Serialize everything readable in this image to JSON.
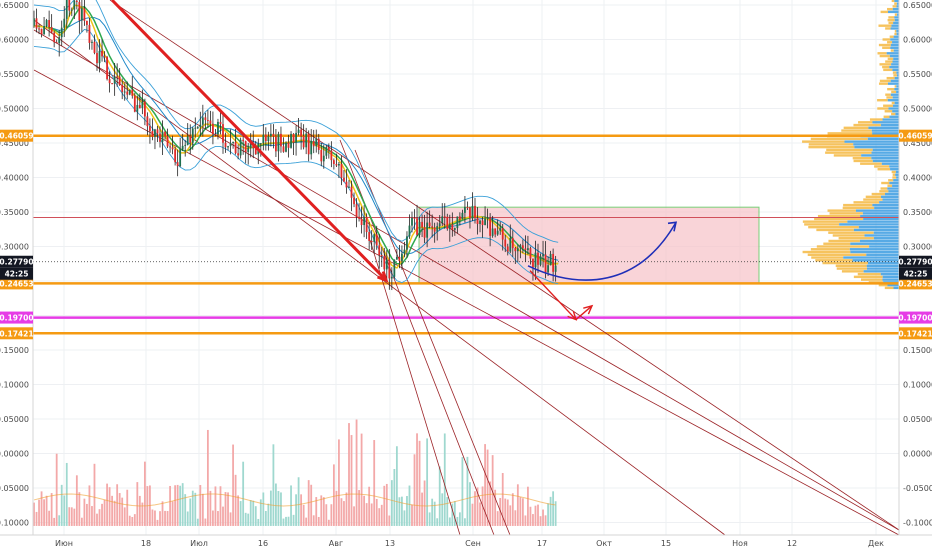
{
  "chart_data": {
    "type": "candlestick",
    "y_ticks": [
      0.65,
      0.6,
      0.55,
      0.5,
      0.45,
      0.4,
      0.35,
      0.3,
      0.25,
      0.2,
      0.15,
      0.1,
      0.05,
      0.0,
      -0.05,
      -0.1
    ],
    "y_tick_labels": [
      "0.65000",
      "0.60000",
      "0.55000",
      "0.50000",
      "0.45000",
      "0.40000",
      "0.35000",
      "0.30000",
      "0.25000",
      "0.20000",
      "0.15000",
      "0.10000",
      "0.05000",
      "0.00000",
      "-0.05000",
      "-0.10000"
    ],
    "ylim": [
      -0.105,
      0.658
    ],
    "x_ticks": [
      "Июн",
      "18",
      "Июл",
      "16",
      "Авг",
      "13",
      "Сен",
      "17",
      "Окт",
      "15",
      "Ноя",
      "12",
      "Дек"
    ],
    "price_series": [
      [
        0,
        0.62
      ],
      [
        6,
        0.615
      ],
      [
        10,
        0.6
      ],
      [
        14,
        0.655
      ],
      [
        20,
        0.64
      ],
      [
        26,
        0.58
      ],
      [
        32,
        0.545
      ],
      [
        38,
        0.52
      ],
      [
        44,
        0.5
      ],
      [
        50,
        0.46
      ],
      [
        58,
        0.43
      ],
      [
        66,
        0.48
      ],
      [
        74,
        0.47
      ],
      [
        82,
        0.44
      ],
      [
        90,
        0.45
      ],
      [
        98,
        0.45
      ],
      [
        106,
        0.455
      ],
      [
        114,
        0.44
      ],
      [
        120,
        0.425
      ],
      [
        126,
        0.38
      ],
      [
        132,
        0.33
      ],
      [
        138,
        0.29
      ],
      [
        142,
        0.262
      ],
      [
        146,
        0.29
      ],
      [
        150,
        0.33
      ],
      [
        156,
        0.325
      ],
      [
        162,
        0.33
      ],
      [
        168,
        0.34
      ],
      [
        174,
        0.345
      ],
      [
        180,
        0.338
      ],
      [
        186,
        0.315
      ],
      [
        192,
        0.29
      ],
      [
        198,
        0.285
      ],
      [
        204,
        0.272
      ],
      [
        208,
        0.2779
      ]
    ],
    "current_price": {
      "price_label": "0.27790",
      "timer_label": "42:25",
      "value": 0.2779,
      "color": "#131722"
    },
    "levels": [
      {
        "label": "0.46059",
        "value": 0.46059,
        "color": "#f59a12"
      },
      {
        "label": "0.24653",
        "value": 0.24653,
        "color": "#f59a12"
      },
      {
        "label": "0.19700",
        "value": 0.197,
        "color": "#e63ce6"
      },
      {
        "label": "0.17421",
        "value": 0.17421,
        "color": "#f59a12"
      }
    ],
    "resistance_line": {
      "value": 0.342,
      "color": "#d0505a"
    },
    "zone": {
      "low": 0.24653,
      "high": 0.357,
      "fill": "#f7c6cc",
      "border": "#4cc24c"
    },
    "forecast": {
      "down_target": 0.197,
      "up_target": 0.335,
      "down_color": "#e02020",
      "up_color": "#1f2fb8"
    },
    "colors": {
      "up": "#26a69a",
      "down": "#ef5350",
      "ema_fast": "#f0c419",
      "ema_slow": "#2fa84f",
      "band": "#3aa0d8",
      "channel": "#9b2226",
      "profile_up": "#3a9be0",
      "profile_down": "#f4b942"
    }
  }
}
